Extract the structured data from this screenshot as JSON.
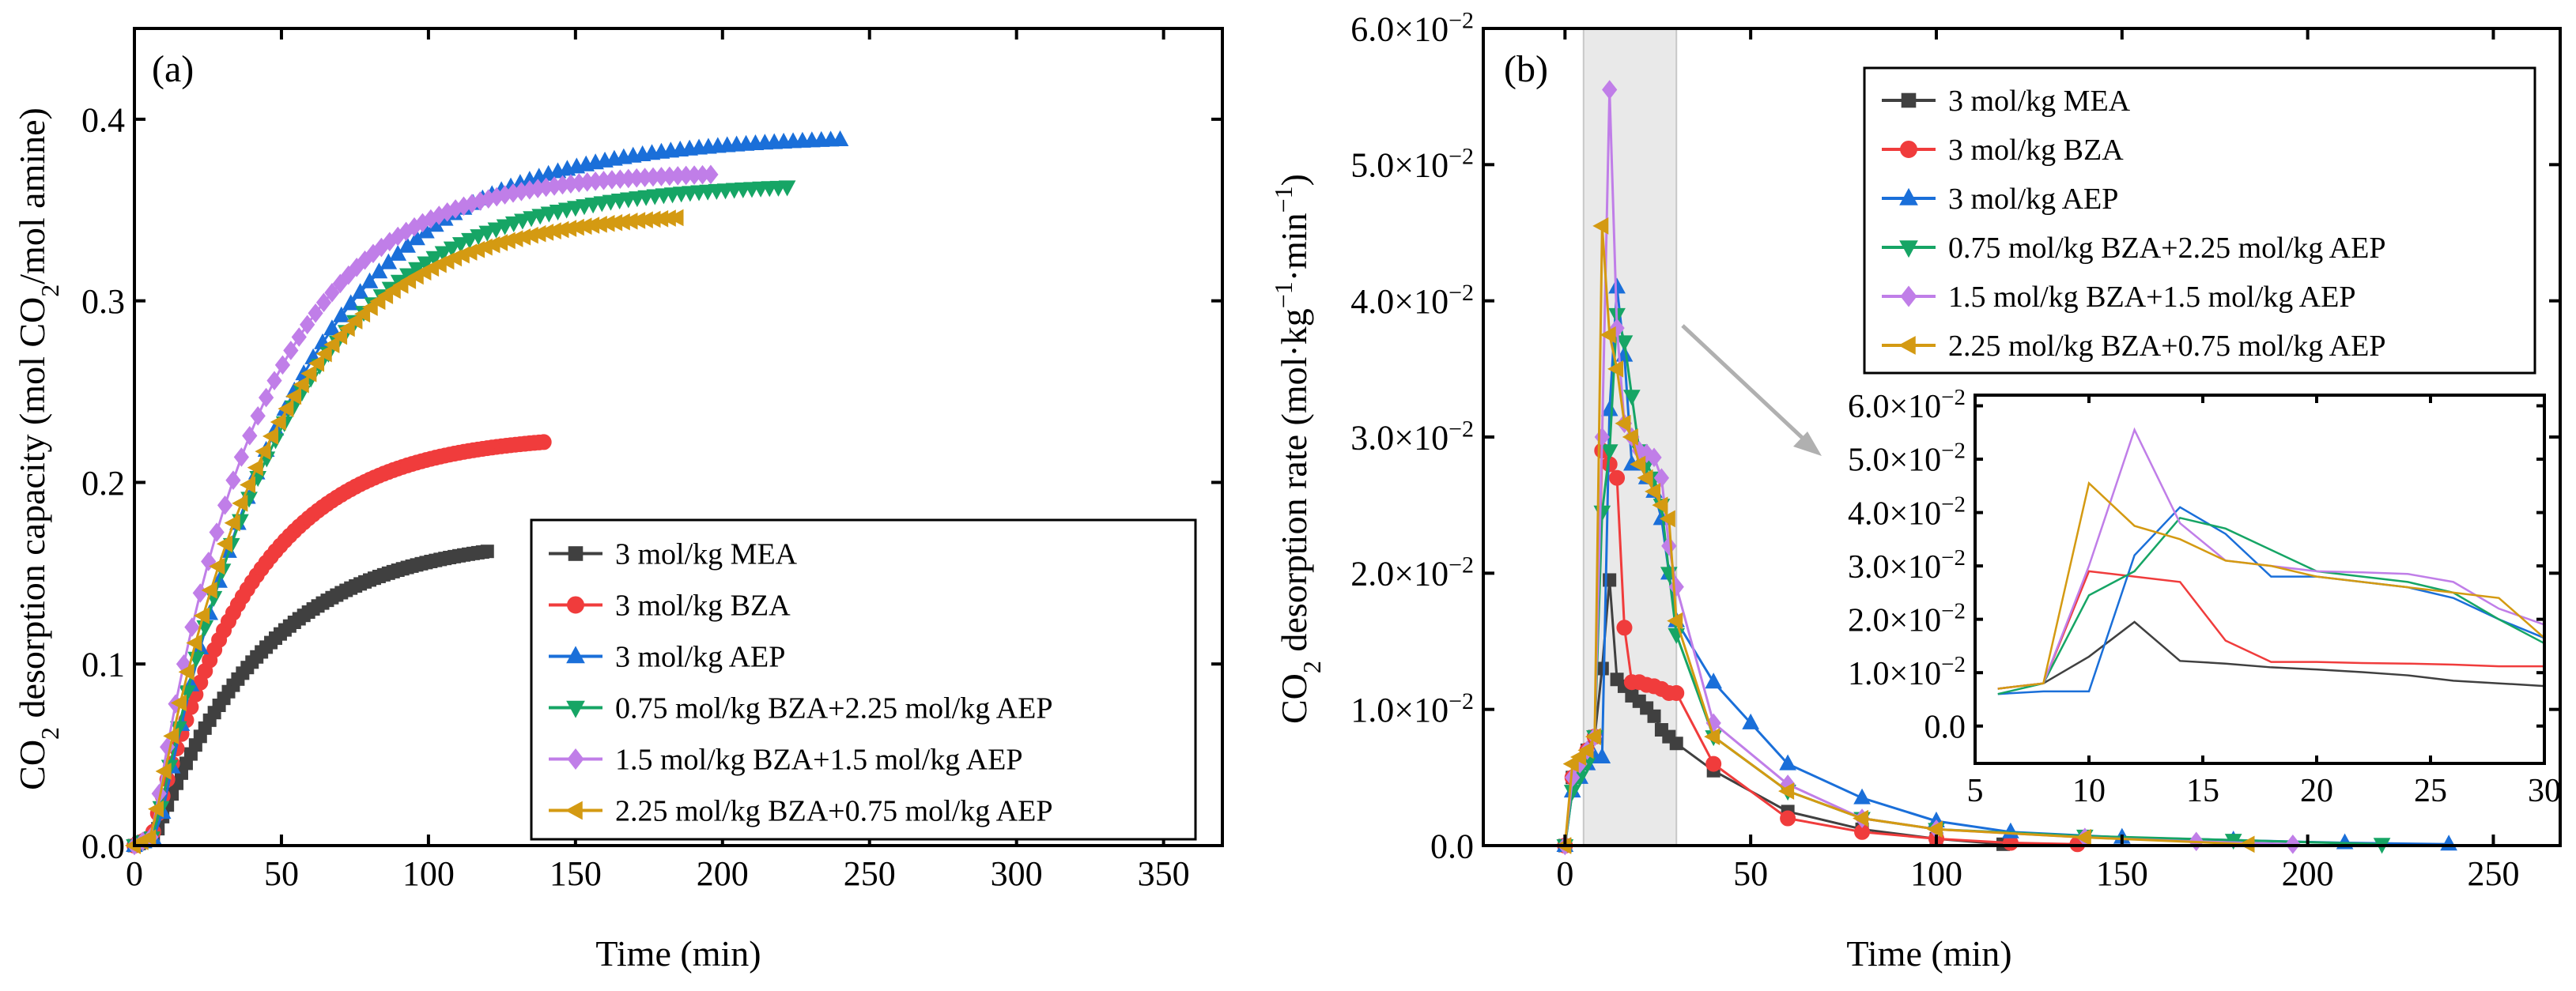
{
  "chart_data": [
    {
      "type": "scatter",
      "panel": "(a)",
      "xlabel": "Time (min)",
      "ylabel": "CO2 desorption capacity (mol CO2/mol amine)",
      "ylabel_parts": {
        "pre": "CO",
        "sub1": "2",
        "mid": " desorption capacity (mol CO",
        "sub2": "2",
        "post": "/mol amine)"
      },
      "xlim": [
        0,
        370
      ],
      "ylim": [
        0,
        0.45
      ],
      "xticks": [
        0,
        50,
        100,
        150,
        200,
        250,
        300,
        350
      ],
      "yticks": [
        0,
        0.1,
        0.2,
        0.3,
        0.4
      ],
      "ytick_labels": [
        "0.0",
        "0.1",
        "0.2",
        "0.3",
        "0.4"
      ],
      "legend_position": "bottom-right",
      "series": [
        {
          "name": "3 mol/kg MEA",
          "color": "#404040",
          "marker": "square",
          "t_end": 120,
          "cap_max": 0.168,
          "tau": 38,
          "lag": 7,
          "dt": 1.6
        },
        {
          "name": "3 mol/kg BZA",
          "color": "#f03c3c",
          "marker": "circle",
          "t_end": 140,
          "cap_max": 0.225,
          "tau": 34,
          "lag": 6,
          "dt": 1.6
        },
        {
          "name": "3 mol/kg AEP",
          "color": "#1a6fd9",
          "marker": "triangle-up",
          "t_end": 240,
          "cap_max": 0.392,
          "tau": 46,
          "lag": 8,
          "dt": 3.2
        },
        {
          "name": "0.75 mol/kg BZA+2.25 mol/kg AEP",
          "color": "#16a565",
          "marker": "triangle-down",
          "t_end": 222,
          "cap_max": 0.366,
          "tau": 44,
          "lag": 7,
          "dt": 3.0
        },
        {
          "name": "1.5 mol/kg BZA+1.5 mol/kg AEP",
          "color": "#c07ee8",
          "marker": "diamond",
          "t_end": 198,
          "cap_max": 0.372,
          "tau": 36,
          "lag": 6,
          "dt": 2.8
        },
        {
          "name": "2.25 mol/kg BZA+0.75 mol/kg AEP",
          "color": "#d49a12",
          "marker": "triangle-left",
          "t_end": 185,
          "cap_max": 0.35,
          "tau": 40,
          "lag": 6,
          "dt": 2.6
        }
      ]
    },
    {
      "type": "line",
      "panel": "(b)",
      "xlabel": "Time (min)",
      "ylabel": "CO2 desorption rate (mol·kg−1·min−1)",
      "ylabel_parts": {
        "pre": "CO",
        "sub1": "2",
        "mid": " desorption rate (mol·kg",
        "sup1": "−1",
        "mid2": "·min",
        "sup2": "−1",
        "post": ")"
      },
      "xlim": [
        -22,
        268
      ],
      "ylim": [
        0,
        0.06
      ],
      "xticks": [
        0,
        50,
        100,
        150,
        200,
        250
      ],
      "yticks": [
        0,
        0.01,
        0.02,
        0.03,
        0.04,
        0.05,
        0.06
      ],
      "ytick_labels": [
        {
          "mant": "0.0",
          "exp": ""
        },
        {
          "mant": "1.0×10",
          "exp": "−2"
        },
        {
          "mant": "2.0×10",
          "exp": "−2"
        },
        {
          "mant": "3.0×10",
          "exp": "−2"
        },
        {
          "mant": "4.0×10",
          "exp": "−2"
        },
        {
          "mant": "5.0×10",
          "exp": "−2"
        },
        {
          "mant": "6.0×10",
          "exp": "−2"
        }
      ],
      "highlight_range": [
        5,
        30
      ],
      "legend_position": "top-right",
      "series": [
        {
          "name": "3 mol/kg MEA",
          "color": "#404040",
          "marker": "square",
          "x": [
            0,
            2,
            4,
            6,
            8,
            10,
            12,
            14,
            16,
            18,
            20,
            22,
            24,
            26,
            28,
            30,
            40,
            60,
            80,
            100,
            118
          ],
          "y": [
            0,
            0.005,
            0.006,
            0.007,
            0.008,
            0.013,
            0.0195,
            0.0122,
            0.0117,
            0.011,
            0.0106,
            0.0101,
            0.0095,
            0.0085,
            0.008,
            0.0075,
            0.0055,
            0.0025,
            0.0012,
            0.0005,
            0.0001
          ]
        },
        {
          "name": "3 mol/kg BZA",
          "color": "#f03c3c",
          "marker": "circle",
          "x": [
            0,
            2,
            4,
            6,
            8,
            10,
            12,
            14,
            16,
            18,
            20,
            22,
            24,
            26,
            28,
            30,
            40,
            60,
            80,
            100,
            120,
            138
          ],
          "y": [
            0,
            0.005,
            0.006,
            0.007,
            0.008,
            0.029,
            0.028,
            0.027,
            0.016,
            0.012,
            0.012,
            0.0118,
            0.0117,
            0.0115,
            0.0112,
            0.0112,
            0.006,
            0.002,
            0.001,
            0.0005,
            0.0002,
            0.0001
          ]
        },
        {
          "name": "3 mol/kg AEP",
          "color": "#1a6fd9",
          "marker": "triangle-up",
          "x": [
            0,
            2,
            4,
            6,
            8,
            10,
            12,
            14,
            16,
            18,
            20,
            22,
            24,
            26,
            28,
            30,
            40,
            50,
            60,
            80,
            100,
            120,
            150,
            180,
            210,
            238
          ],
          "y": [
            0,
            0.004,
            0.005,
            0.006,
            0.0065,
            0.0065,
            0.032,
            0.041,
            0.036,
            0.028,
            0.028,
            0.027,
            0.026,
            0.024,
            0.02,
            0.0165,
            0.012,
            0.009,
            0.006,
            0.0035,
            0.0018,
            0.001,
            0.0006,
            0.0004,
            0.0002,
            0.0001
          ]
        },
        {
          "name": "0.75 mol/kg BZA+2.25 mol/kg AEP",
          "color": "#16a565",
          "marker": "triangle-down",
          "x": [
            0,
            2,
            4,
            6,
            8,
            10,
            12,
            14,
            16,
            18,
            20,
            22,
            24,
            26,
            28,
            30,
            40,
            60,
            80,
            100,
            140,
            180,
            220
          ],
          "y": [
            0,
            0.004,
            0.005,
            0.006,
            0.008,
            0.0245,
            0.029,
            0.039,
            0.037,
            0.033,
            0.029,
            0.028,
            0.027,
            0.025,
            0.02,
            0.0155,
            0.008,
            0.004,
            0.002,
            0.0012,
            0.0007,
            0.0004,
            0.0001
          ]
        },
        {
          "name": "1.5 mol/kg BZA+1.5 mol/kg AEP",
          "color": "#c07ee8",
          "marker": "diamond",
          "x": [
            0,
            2,
            4,
            6,
            8,
            10,
            12,
            14,
            16,
            18,
            20,
            22,
            24,
            26,
            28,
            30,
            40,
            60,
            80,
            100,
            140,
            170,
            196
          ],
          "y": [
            0,
            0.005,
            0.006,
            0.007,
            0.008,
            0.03,
            0.0555,
            0.038,
            0.031,
            0.03,
            0.029,
            0.0288,
            0.0285,
            0.027,
            0.022,
            0.019,
            0.009,
            0.0045,
            0.002,
            0.0012,
            0.0006,
            0.0003,
            0.0001
          ]
        },
        {
          "name": "2.25 mol/kg BZA+0.75 mol/kg AEP",
          "color": "#d49a12",
          "marker": "triangle-left",
          "x": [
            0,
            2,
            4,
            6,
            8,
            10,
            12,
            14,
            16,
            18,
            20,
            22,
            24,
            26,
            28,
            30,
            40,
            60,
            80,
            100,
            140,
            184
          ],
          "y": [
            0,
            0.006,
            0.0065,
            0.007,
            0.008,
            0.0455,
            0.0375,
            0.035,
            0.031,
            0.03,
            0.028,
            0.027,
            0.026,
            0.025,
            0.024,
            0.0165,
            0.008,
            0.004,
            0.002,
            0.0012,
            0.0006,
            0.0001
          ]
        }
      ],
      "inset": {
        "xlim": [
          5,
          30
        ],
        "ylim": [
          -0.007,
          0.062
        ],
        "xticks": [
          5,
          10,
          15,
          20,
          25,
          30
        ],
        "yticks": [
          0,
          0.01,
          0.02,
          0.03,
          0.04,
          0.05,
          0.06
        ],
        "ytick_labels": [
          {
            "mant": "0.0",
            "exp": ""
          },
          {
            "mant": "1.0×10",
            "exp": "−2"
          },
          {
            "mant": "2.0×10",
            "exp": "−2"
          },
          {
            "mant": "3.0×10",
            "exp": "−2"
          },
          {
            "mant": "4.0×10",
            "exp": "−2"
          },
          {
            "mant": "5.0×10",
            "exp": "−2"
          },
          {
            "mant": "6.0×10",
            "exp": "−2"
          }
        ]
      }
    }
  ]
}
